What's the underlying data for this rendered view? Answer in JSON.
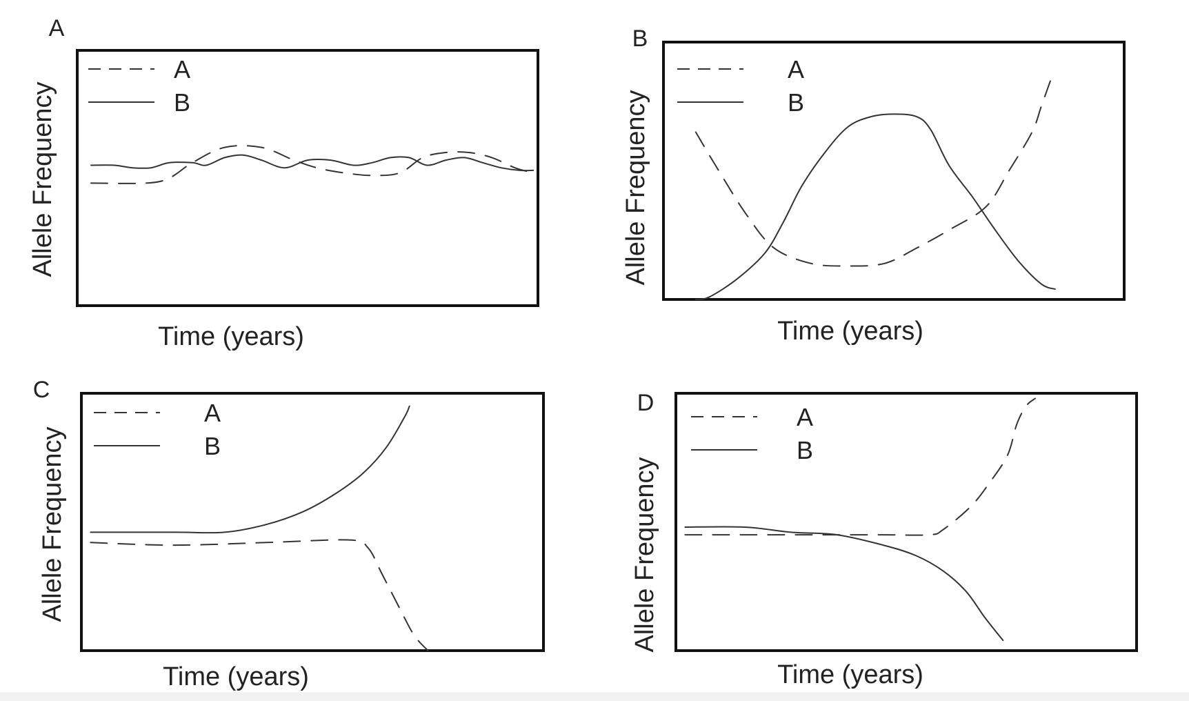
{
  "chart_data": [
    {
      "type": "line",
      "panel_label": "A",
      "xlabel": "Time (years)",
      "ylabel": "Allele Frequency",
      "xlim": [
        0,
        100
      ],
      "ylim": [
        0,
        100
      ],
      "grid": false,
      "legend_placement": "top-left",
      "series": [
        {
          "name": "A",
          "style": "dashed",
          "points": [
            [
              3,
              48
            ],
            [
              15,
              48
            ],
            [
              20,
              50
            ],
            [
              25,
              56
            ],
            [
              32,
              62
            ],
            [
              40,
              62
            ],
            [
              47,
              57
            ],
            [
              52,
              54
            ],
            [
              58,
              52
            ],
            [
              64,
              51
            ],
            [
              70,
              52
            ],
            [
              75,
              58
            ],
            [
              80,
              60
            ],
            [
              85,
              60
            ],
            [
              90,
              58
            ],
            [
              95,
              54
            ],
            [
              99,
              52
            ]
          ]
        },
        {
          "name": "B",
          "style": "solid",
          "points": [
            [
              3,
              55
            ],
            [
              8,
              55
            ],
            [
              12,
              54
            ],
            [
              16,
              54
            ],
            [
              20,
              56
            ],
            [
              25,
              56
            ],
            [
              28,
              55
            ],
            [
              32,
              58
            ],
            [
              36,
              59
            ],
            [
              40,
              57
            ],
            [
              45,
              54
            ],
            [
              50,
              57
            ],
            [
              55,
              57
            ],
            [
              60,
              55
            ],
            [
              64,
              56
            ],
            [
              68,
              58
            ],
            [
              72,
              58
            ],
            [
              76,
              55
            ],
            [
              80,
              57
            ],
            [
              84,
              58
            ],
            [
              88,
              56
            ],
            [
              92,
              54
            ],
            [
              96,
              53
            ],
            [
              99,
              53
            ]
          ]
        }
      ]
    },
    {
      "type": "line",
      "panel_label": "B",
      "xlabel": "Time (years)",
      "ylabel": "Allele Frequency",
      "xlim": [
        0,
        100
      ],
      "ylim": [
        0,
        100
      ],
      "grid": false,
      "legend_placement": "top-left",
      "series": [
        {
          "name": "A",
          "style": "dashed",
          "points": [
            [
              7,
              65
            ],
            [
              12,
              50
            ],
            [
              18,
              33
            ],
            [
              24,
              20
            ],
            [
              32,
              14
            ],
            [
              40,
              13
            ],
            [
              48,
              14
            ],
            [
              55,
              20
            ],
            [
              62,
              27
            ],
            [
              70,
              36
            ],
            [
              75,
              50
            ],
            [
              80,
              65
            ],
            [
              82,
              75
            ],
            [
              84,
              85
            ]
          ]
        },
        {
          "name": "B",
          "style": "solid",
          "points": [
            [
              7,
              0
            ],
            [
              10,
              1
            ],
            [
              16,
              8
            ],
            [
              22,
              18
            ],
            [
              26,
              30
            ],
            [
              30,
              44
            ],
            [
              35,
              57
            ],
            [
              40,
              67
            ],
            [
              45,
              71
            ],
            [
              50,
              72
            ],
            [
              55,
              71
            ],
            [
              58,
              66
            ],
            [
              62,
              52
            ],
            [
              67,
              40
            ],
            [
              72,
              27
            ],
            [
              77,
              15
            ],
            [
              82,
              6
            ],
            [
              85,
              4
            ]
          ]
        }
      ]
    },
    {
      "type": "line",
      "panel_label": "C",
      "xlabel": "Time (years)",
      "ylabel": "Allele Frequency",
      "xlim": [
        0,
        100
      ],
      "ylim": [
        0,
        100
      ],
      "grid": false,
      "legend_placement": "top-left",
      "series": [
        {
          "name": "A",
          "style": "dashed",
          "points": [
            [
              2,
              42
            ],
            [
              20,
              41
            ],
            [
              40,
              42
            ],
            [
              58,
              43
            ],
            [
              62,
              40
            ],
            [
              65,
              30
            ],
            [
              69,
              16
            ],
            [
              72,
              6
            ],
            [
              75,
              0
            ]
          ]
        },
        {
          "name": "B",
          "style": "solid",
          "points": [
            [
              2,
              46
            ],
            [
              20,
              46
            ],
            [
              31,
              46
            ],
            [
              40,
              49
            ],
            [
              48,
              54
            ],
            [
              55,
              61
            ],
            [
              61,
              69
            ],
            [
              66,
              79
            ],
            [
              70,
              91
            ],
            [
              71,
              95
            ]
          ]
        }
      ]
    },
    {
      "type": "line",
      "panel_label": "D",
      "xlabel": "Time (years)",
      "ylabel": "Allele Frequency",
      "xlim": [
        0,
        100
      ],
      "ylim": [
        0,
        100
      ],
      "grid": false,
      "legend_placement": "top-left",
      "series": [
        {
          "name": "A",
          "style": "dashed",
          "points": [
            [
              2,
              45
            ],
            [
              15,
              45
            ],
            [
              30,
              45
            ],
            [
              45,
              45
            ],
            [
              55,
              45
            ],
            [
              58,
              47
            ],
            [
              64,
              56
            ],
            [
              68,
              65
            ],
            [
              72,
              76
            ],
            [
              74,
              88
            ],
            [
              76,
              95
            ],
            [
              78,
              98
            ]
          ]
        },
        {
          "name": "B",
          "style": "solid",
          "points": [
            [
              2,
              48
            ],
            [
              15,
              48
            ],
            [
              25,
              46
            ],
            [
              35,
              45
            ],
            [
              45,
              41
            ],
            [
              52,
              37
            ],
            [
              58,
              31
            ],
            [
              63,
              23
            ],
            [
              67,
              13
            ],
            [
              71,
              4
            ]
          ]
        }
      ]
    }
  ]
}
